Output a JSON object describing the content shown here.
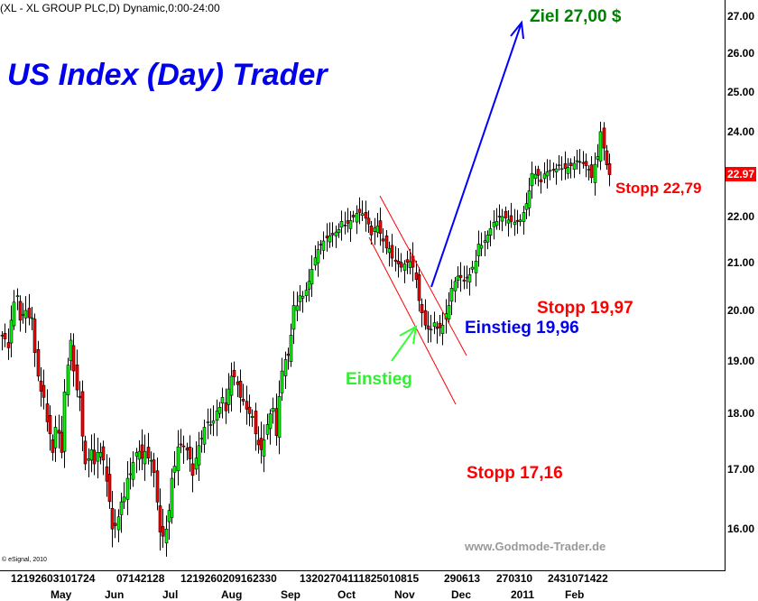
{
  "header": "(XL - XL GROUP PLC,D) Dynamic,0:00-24:00",
  "title": "US Index (Day) Trader",
  "annotations": {
    "target": "Ziel 27,00 $",
    "entry_arrow": "Einstieg",
    "entry": "Einstieg 19,96",
    "stop_1997": "Stopp 19,97",
    "stop_2279": "Stopp 22,79",
    "stop_1716": "Stopp 17,16"
  },
  "watermark": "www.Godmode-Trader.de",
  "copyright": "© eSignal, 2010",
  "colors": {
    "up": "#00ff00",
    "down": "#ff0000",
    "title": "#0000ee",
    "target_line": "#0000ff",
    "channel": "#ff0000",
    "entry_arrow": "#33ff33"
  },
  "chart_data": {
    "type": "candlestick",
    "y_scale": "log",
    "ylim": [
      15.5,
      27.3
    ],
    "y_ticks": [
      "27.00",
      "26.00",
      "25.00",
      "24.00",
      "22.00",
      "21.00",
      "20.00",
      "19.00",
      "18.00",
      "17.00",
      "16.00"
    ],
    "last_price": "22.97",
    "x_day_groups": [
      "12192603101724",
      "07142128",
      "1219260209162330",
      "1320270411182501​0815",
      "290613",
      "270310",
      "2431071422"
    ],
    "x_months": [
      "May",
      "Jun",
      "Jul",
      "Aug",
      "Sep",
      "Oct",
      "Nov",
      "Dec",
      "2011",
      "Feb"
    ],
    "close_path": [
      [
        0,
        19.5
      ],
      [
        2,
        19.25
      ],
      [
        3,
        19.8
      ],
      [
        5,
        20.3
      ],
      [
        6,
        19.8
      ],
      [
        8,
        20.0
      ],
      [
        10,
        19.85
      ],
      [
        12,
        18.7
      ],
      [
        14,
        18.3
      ],
      [
        15,
        17.85
      ],
      [
        17,
        17.3
      ],
      [
        18,
        17.75
      ],
      [
        20,
        17.3
      ],
      [
        21,
        18.4
      ],
      [
        23,
        19.4
      ],
      [
        24,
        18.8
      ],
      [
        26,
        18.3
      ],
      [
        28,
        17.1
      ],
      [
        30,
        17.35
      ],
      [
        31,
        17.1
      ],
      [
        33,
        17.3
      ],
      [
        35,
        16.8
      ],
      [
        37,
        16.0
      ],
      [
        39,
        16.2
      ],
      [
        40,
        16.45
      ],
      [
        42,
        16.85
      ],
      [
        45,
        17.3
      ],
      [
        47,
        17.2
      ],
      [
        49,
        17.2
      ],
      [
        51,
        16.95
      ],
      [
        53,
        15.95
      ],
      [
        55,
        16.0
      ],
      [
        57,
        16.85
      ],
      [
        59,
        17.4
      ],
      [
        61,
        17.4
      ],
      [
        64,
        16.9
      ],
      [
        65,
        17.2
      ],
      [
        68,
        17.75
      ],
      [
        69,
        17.85
      ],
      [
        72,
        18.05
      ],
      [
        74,
        18.3
      ],
      [
        75,
        18.05
      ],
      [
        77,
        18.7
      ],
      [
        80,
        18.3
      ],
      [
        83,
        18.0
      ],
      [
        84,
        17.95
      ],
      [
        87,
        17.35
      ],
      [
        89,
        17.8
      ],
      [
        91,
        18.1
      ],
      [
        92,
        17.6
      ],
      [
        94,
        18.8
      ],
      [
        96,
        19.1
      ],
      [
        97,
        19.5
      ],
      [
        98,
        20.1
      ],
      [
        100,
        20.3
      ],
      [
        103,
        20.6
      ],
      [
        105,
        21.1
      ],
      [
        111,
        21.6
      ],
      [
        114,
        21.9
      ],
      [
        120,
        22.1
      ],
      [
        124,
        21.6
      ],
      [
        126,
        21.8
      ],
      [
        130,
        21.3
      ],
      [
        134,
        20.9
      ],
      [
        138,
        20.9
      ],
      [
        140,
        20.2
      ],
      [
        142,
        19.7
      ],
      [
        145,
        19.75
      ],
      [
        148,
        19.7
      ],
      [
        150,
        20.1
      ],
      [
        152,
        20.6
      ],
      [
        155,
        20.6
      ],
      [
        158,
        20.9
      ],
      [
        160,
        21.4
      ],
      [
        163,
        21.6
      ],
      [
        166,
        21.9
      ],
      [
        171,
        21.9
      ],
      [
        175,
        22.1
      ],
      [
        176,
        22.3
      ],
      [
        178,
        23.0
      ],
      [
        181,
        22.8
      ],
      [
        187,
        23.2
      ],
      [
        193,
        23.3
      ],
      [
        198,
        22.9
      ],
      [
        200,
        23.4
      ],
      [
        201,
        24.0
      ],
      [
        202,
        23.6
      ],
      [
        203,
        23.2
      ],
      [
        204,
        22.97
      ]
    ],
    "target_price": 27.0
  }
}
